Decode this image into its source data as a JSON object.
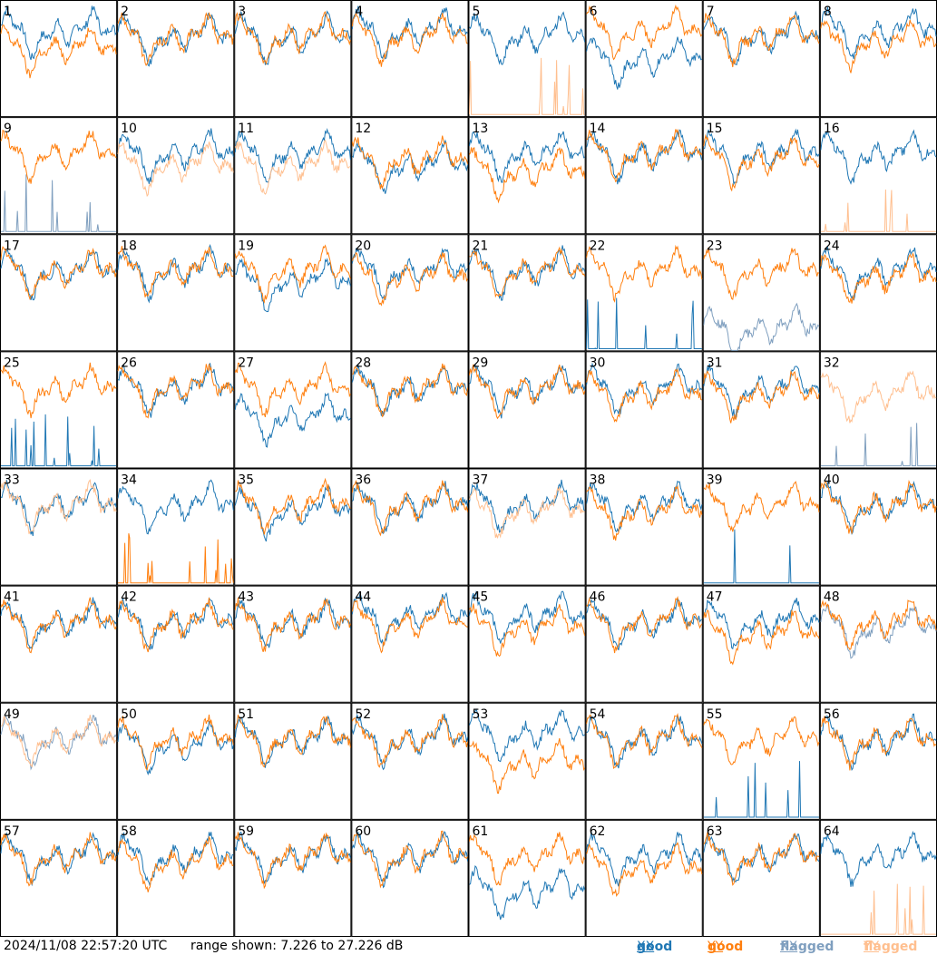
{
  "footer": {
    "timestamp": "2024/11/08 22:57:20 UTC",
    "range": "range shown: 7.226 to 27.226 dB"
  },
  "legend": {
    "good": "good",
    "flagged": "flagged",
    "xx": "XX",
    "yy": "YY"
  },
  "colors": {
    "good_xx": "#1f77b4",
    "good_yy": "#ff7f0e",
    "flagged_xx": "#7f9fbf",
    "flagged_yy": "#ffbf8f"
  },
  "chart_data": {
    "type": "line",
    "range_db": [
      7.226,
      27.226
    ],
    "grid": false,
    "legend_position": "bottom-right",
    "series_kinds": [
      "good XX",
      "good YY",
      "flagged XX",
      "flagged YY"
    ],
    "panels": [
      {
        "label": "1",
        "xx": "good",
        "yy": "good",
        "xx_db": 23,
        "yy_db": 20
      },
      {
        "label": "2",
        "xx": "good",
        "yy": "good",
        "xx_db": 22,
        "yy_db": 22
      },
      {
        "label": "3",
        "xx": "good",
        "yy": "good",
        "xx_db": 22,
        "yy_db": 22
      },
      {
        "label": "4",
        "xx": "good",
        "yy": "good",
        "xx_db": 23,
        "yy_db": 22
      },
      {
        "label": "5",
        "xx": "good",
        "yy": "flagged",
        "xx_db": 22,
        "yy_db": 8
      },
      {
        "label": "6",
        "xx": "good",
        "yy": "good",
        "xx_db": 18,
        "yy_db": 23
      },
      {
        "label": "7",
        "xx": "good",
        "yy": "good",
        "xx_db": 22,
        "yy_db": 22
      },
      {
        "label": "8",
        "xx": "good",
        "yy": "good",
        "xx_db": 23,
        "yy_db": 21
      },
      {
        "label": "9",
        "xx": "flagged",
        "yy": "good",
        "xx_db": 8,
        "yy_db": 22
      },
      {
        "label": "10",
        "xx": "good",
        "yy": "flagged",
        "xx_db": 22,
        "yy_db": 20
      },
      {
        "label": "11",
        "xx": "good",
        "yy": "flagged",
        "xx_db": 22,
        "yy_db": 20
      },
      {
        "label": "12",
        "xx": "good",
        "yy": "good",
        "xx_db": 20,
        "yy_db": 21
      },
      {
        "label": "13",
        "xx": "good",
        "yy": "good",
        "xx_db": 22,
        "yy_db": 19
      },
      {
        "label": "14",
        "xx": "good",
        "yy": "good",
        "xx_db": 22,
        "yy_db": 22
      },
      {
        "label": "15",
        "xx": "good",
        "yy": "good",
        "xx_db": 22,
        "yy_db": 21
      },
      {
        "label": "16",
        "xx": "good",
        "yy": "flagged",
        "xx_db": 22,
        "yy_db": 8
      },
      {
        "label": "17",
        "xx": "good",
        "yy": "good",
        "xx_db": 22,
        "yy_db": 22
      },
      {
        "label": "18",
        "xx": "good",
        "yy": "good",
        "xx_db": 22,
        "yy_db": 22
      },
      {
        "label": "19",
        "xx": "good",
        "yy": "good",
        "xx_db": 20,
        "yy_db": 22
      },
      {
        "label": "20",
        "xx": "good",
        "yy": "good",
        "xx_db": 22,
        "yy_db": 21
      },
      {
        "label": "21",
        "xx": "good",
        "yy": "good",
        "xx_db": 22,
        "yy_db": 22
      },
      {
        "label": "22",
        "xx": "good",
        "yy": "good",
        "xx_db": 8,
        "yy_db": 22
      },
      {
        "label": "23",
        "xx": "flagged",
        "yy": "good",
        "xx_db": 12,
        "yy_db": 22
      },
      {
        "label": "24",
        "xx": "good",
        "yy": "good",
        "xx_db": 22,
        "yy_db": 21
      },
      {
        "label": "25",
        "xx": "good",
        "yy": "good",
        "xx_db": 8,
        "yy_db": 22
      },
      {
        "label": "26",
        "xx": "good",
        "yy": "good",
        "xx_db": 22,
        "yy_db": 22
      },
      {
        "label": "27",
        "xx": "good",
        "yy": "good",
        "xx_db": 17,
        "yy_db": 22
      },
      {
        "label": "28",
        "xx": "good",
        "yy": "good",
        "xx_db": 22,
        "yy_db": 22
      },
      {
        "label": "29",
        "xx": "good",
        "yy": "good",
        "xx_db": 22,
        "yy_db": 22
      },
      {
        "label": "30",
        "xx": "good",
        "yy": "good",
        "xx_db": 22,
        "yy_db": 21
      },
      {
        "label": "31",
        "xx": "good",
        "yy": "good",
        "xx_db": 22,
        "yy_db": 21
      },
      {
        "label": "32",
        "xx": "flagged",
        "yy": "flagged",
        "xx_db": 8,
        "yy_db": 21
      },
      {
        "label": "33",
        "xx": "good",
        "yy": "flagged",
        "xx_db": 22,
        "yy_db": 22
      },
      {
        "label": "34",
        "xx": "good",
        "yy": "good",
        "xx_db": 22,
        "yy_db": 9
      },
      {
        "label": "35",
        "xx": "good",
        "yy": "good",
        "xx_db": 21,
        "yy_db": 22
      },
      {
        "label": "36",
        "xx": "good",
        "yy": "good",
        "xx_db": 22,
        "yy_db": 22
      },
      {
        "label": "37",
        "xx": "good",
        "yy": "flagged",
        "xx_db": 22,
        "yy_db": 21
      },
      {
        "label": "38",
        "xx": "good",
        "yy": "good",
        "xx_db": 22,
        "yy_db": 21
      },
      {
        "label": "39",
        "xx": "good",
        "yy": "good",
        "xx_db": 8,
        "yy_db": 22
      },
      {
        "label": "40",
        "xx": "good",
        "yy": "good",
        "xx_db": 22,
        "yy_db": 22
      },
      {
        "label": "41",
        "xx": "good",
        "yy": "good",
        "xx_db": 22,
        "yy_db": 22
      },
      {
        "label": "42",
        "xx": "good",
        "yy": "good",
        "xx_db": 22,
        "yy_db": 22
      },
      {
        "label": "43",
        "xx": "good",
        "yy": "good",
        "xx_db": 22,
        "yy_db": 22
      },
      {
        "label": "44",
        "xx": "good",
        "yy": "good",
        "xx_db": 23,
        "yy_db": 22
      },
      {
        "label": "45",
        "xx": "good",
        "yy": "good",
        "xx_db": 23,
        "yy_db": 21
      },
      {
        "label": "46",
        "xx": "good",
        "yy": "good",
        "xx_db": 22,
        "yy_db": 22
      },
      {
        "label": "47",
        "xx": "good",
        "yy": "good",
        "xx_db": 22,
        "yy_db": 20
      },
      {
        "label": "48",
        "xx": "flagged",
        "yy": "good",
        "xx_db": 21,
        "yy_db": 22
      },
      {
        "label": "49",
        "xx": "flagged",
        "yy": "flagged",
        "xx_db": 22,
        "yy_db": 22
      },
      {
        "label": "50",
        "xx": "good",
        "yy": "good",
        "xx_db": 21,
        "yy_db": 22
      },
      {
        "label": "51",
        "xx": "good",
        "yy": "good",
        "xx_db": 22,
        "yy_db": 22
      },
      {
        "label": "52",
        "xx": "good",
        "yy": "good",
        "xx_db": 22,
        "yy_db": 22
      },
      {
        "label": "53",
        "xx": "good",
        "yy": "good",
        "xx_db": 23,
        "yy_db": 18
      },
      {
        "label": "54",
        "xx": "good",
        "yy": "good",
        "xx_db": 22,
        "yy_db": 22
      },
      {
        "label": "55",
        "xx": "good",
        "yy": "good",
        "xx_db": 10,
        "yy_db": 22
      },
      {
        "label": "56",
        "xx": "good",
        "yy": "good",
        "xx_db": 22,
        "yy_db": 22
      },
      {
        "label": "57",
        "xx": "good",
        "yy": "good",
        "xx_db": 22,
        "yy_db": 22
      },
      {
        "label": "58",
        "xx": "good",
        "yy": "good",
        "xx_db": 22,
        "yy_db": 21
      },
      {
        "label": "59",
        "xx": "good",
        "yy": "good",
        "xx_db": 22,
        "yy_db": 22
      },
      {
        "label": "60",
        "xx": "good",
        "yy": "good",
        "xx_db": 22,
        "yy_db": 22
      },
      {
        "label": "61",
        "xx": "good",
        "yy": "good",
        "xx_db": 16,
        "yy_db": 22
      },
      {
        "label": "62",
        "xx": "good",
        "yy": "good",
        "xx_db": 22,
        "yy_db": 20
      },
      {
        "label": "63",
        "xx": "good",
        "yy": "good",
        "xx_db": 22,
        "yy_db": 22
      },
      {
        "label": "64",
        "xx": "good",
        "yy": "flagged",
        "xx_db": 22,
        "yy_db": 8
      }
    ]
  }
}
